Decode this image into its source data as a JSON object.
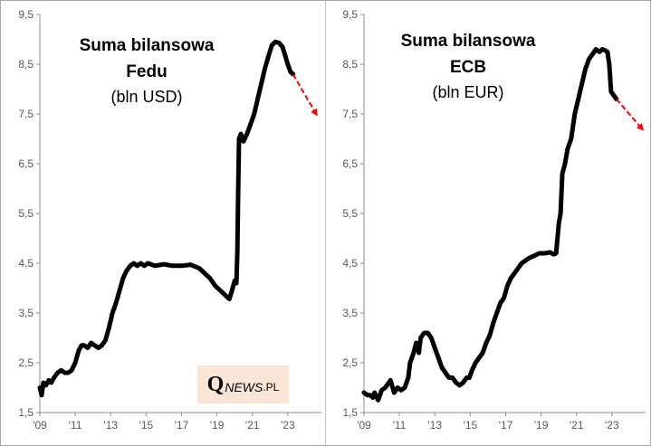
{
  "watermark": {
    "q": "Q",
    "news": "NEWS",
    "pl": ".PL"
  },
  "chart_data": [
    {
      "type": "line",
      "title": "Suma bilansowa",
      "subtitle_line": "Fedu",
      "unit": "(bln USD)",
      "y_ticks": [
        "9,5",
        "8,5",
        "7,5",
        "6,5",
        "5,5",
        "4,5",
        "3,5",
        "2,5",
        "1,5"
      ],
      "x_ticks": [
        "'09",
        "'11",
        "'13",
        "'15",
        "'17",
        "'19",
        "'21",
        "'23"
      ],
      "ylim": [
        1.5,
        9.5
      ],
      "xlim": [
        2009,
        2024.9
      ],
      "grid": false,
      "series": [
        {
          "color": "#000000",
          "x": [
            2009.0,
            2009.1,
            2009.2,
            2009.35,
            2009.5,
            2009.65,
            2009.8,
            2010.0,
            2010.2,
            2010.4,
            2010.6,
            2010.8,
            2011.0,
            2011.2,
            2011.35,
            2011.5,
            2011.7,
            2011.9,
            2012.1,
            2012.3,
            2012.5,
            2012.7,
            2012.9,
            2013.1,
            2013.3,
            2013.5,
            2013.7,
            2013.9,
            2014.1,
            2014.3,
            2014.5,
            2014.7,
            2014.9,
            2015.1,
            2015.5,
            2016.0,
            2016.5,
            2017.0,
            2017.5,
            2018.0,
            2018.3,
            2018.6,
            2018.9,
            2019.2,
            2019.5,
            2019.7,
            2019.85,
            2020.0,
            2020.1,
            2020.15,
            2020.2,
            2020.25,
            2020.35,
            2020.5,
            2020.7,
            2020.9,
            2021.1,
            2021.3,
            2021.5,
            2021.7,
            2021.9,
            2022.1,
            2022.3,
            2022.5,
            2022.7,
            2022.9,
            2023.0,
            2023.15,
            2023.3
          ],
          "y": [
            2.0,
            1.85,
            2.1,
            2.05,
            2.15,
            2.1,
            2.2,
            2.3,
            2.35,
            2.3,
            2.3,
            2.35,
            2.5,
            2.75,
            2.85,
            2.85,
            2.8,
            2.9,
            2.85,
            2.8,
            2.85,
            2.95,
            3.2,
            3.5,
            3.7,
            3.95,
            4.2,
            4.35,
            4.45,
            4.5,
            4.45,
            4.5,
            4.45,
            4.5,
            4.45,
            4.48,
            4.45,
            4.45,
            4.47,
            4.4,
            4.3,
            4.2,
            4.05,
            3.95,
            3.85,
            3.78,
            3.95,
            4.15,
            4.1,
            4.7,
            6.0,
            7.0,
            7.1,
            6.95,
            7.1,
            7.3,
            7.5,
            7.8,
            8.1,
            8.4,
            8.65,
            8.88,
            8.95,
            8.93,
            8.85,
            8.62,
            8.5,
            8.35,
            8.3
          ],
          "trend": {
            "from": [
              2023.3,
              8.3
            ],
            "to": [
              2024.6,
              7.5
            ],
            "color": "#ff0000"
          }
        }
      ]
    },
    {
      "type": "line",
      "title": "Suma bilansowa",
      "subtitle_line": "ECB",
      "unit": "(bln EUR)",
      "y_ticks": [
        "9,5",
        "8,5",
        "7,5",
        "6,5",
        "5,5",
        "4,5",
        "3,5",
        "2,5",
        "1,5"
      ],
      "x_ticks": [
        "'09",
        "'11",
        "'13",
        "'15",
        "'17",
        "'19",
        "'21",
        "'23"
      ],
      "ylim": [
        1.5,
        9.5
      ],
      "xlim": [
        2009,
        2024.9
      ],
      "grid": false,
      "series": [
        {
          "color": "#000000",
          "x": [
            2009.0,
            2009.2,
            2009.35,
            2009.5,
            2009.6,
            2009.8,
            2010.0,
            2010.2,
            2010.4,
            2010.5,
            2010.7,
            2010.9,
            2011.1,
            2011.3,
            2011.5,
            2011.6,
            2011.8,
            2011.95,
            2012.1,
            2012.2,
            2012.4,
            2012.6,
            2012.8,
            2013.0,
            2013.2,
            2013.4,
            2013.6,
            2013.8,
            2014.0,
            2014.2,
            2014.4,
            2014.6,
            2014.8,
            2014.95,
            2015.1,
            2015.3,
            2015.5,
            2015.7,
            2015.9,
            2016.1,
            2016.3,
            2016.5,
            2016.7,
            2016.9,
            2017.1,
            2017.3,
            2017.5,
            2017.7,
            2017.9,
            2018.1,
            2018.3,
            2018.6,
            2018.9,
            2019.2,
            2019.5,
            2019.7,
            2019.85,
            2020.0,
            2020.1,
            2020.2,
            2020.35,
            2020.5,
            2020.7,
            2020.9,
            2021.1,
            2021.3,
            2021.5,
            2021.7,
            2021.9,
            2022.1,
            2022.3,
            2022.45,
            2022.6,
            2022.75,
            2022.85,
            2022.95,
            2023.05,
            2023.15,
            2023.25
          ],
          "y": [
            1.9,
            1.85,
            1.85,
            1.8,
            1.9,
            1.75,
            1.95,
            2.0,
            2.1,
            2.15,
            1.9,
            2.0,
            1.95,
            2.0,
            2.2,
            2.5,
            2.7,
            2.9,
            2.7,
            3.0,
            3.1,
            3.1,
            3.0,
            2.8,
            2.6,
            2.4,
            2.3,
            2.2,
            2.2,
            2.1,
            2.05,
            2.1,
            2.2,
            2.2,
            2.35,
            2.5,
            2.6,
            2.7,
            2.9,
            3.05,
            3.3,
            3.5,
            3.7,
            3.8,
            4.05,
            4.2,
            4.3,
            4.4,
            4.5,
            4.55,
            4.6,
            4.65,
            4.7,
            4.7,
            4.72,
            4.68,
            4.7,
            5.3,
            5.5,
            6.3,
            6.5,
            6.8,
            7.0,
            7.5,
            7.8,
            8.1,
            8.4,
            8.6,
            8.7,
            8.8,
            8.75,
            8.8,
            8.78,
            8.75,
            8.5,
            7.95,
            7.9,
            7.85,
            7.8
          ],
          "trend": {
            "from": [
              2023.25,
              7.8
            ],
            "to": [
              2024.7,
              7.2
            ],
            "color": "#ff0000"
          }
        }
      ]
    }
  ]
}
